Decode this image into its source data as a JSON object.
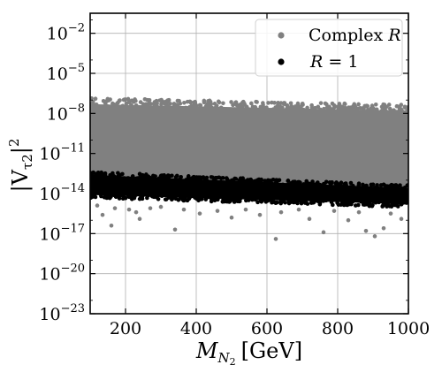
{
  "chart_data": {
    "type": "scatter",
    "xlabel_main": "M",
    "xlabel_sub": "N",
    "xlabel_subsub": "2",
    "xlabel_unit": "[GeV]",
    "ylabel_main": "|V",
    "ylabel_sub": "τ2",
    "ylabel_close": "|",
    "ylabel_sup": "2",
    "xlim": [
      100,
      1000
    ],
    "ylim_log10": [
      -23,
      -0.5
    ],
    "y_scale": "log",
    "grid": true,
    "legend_placement": "top-right",
    "x_ticks": [
      {
        "value": 200,
        "label": "200"
      },
      {
        "value": 400,
        "label": "400"
      },
      {
        "value": 600,
        "label": "600"
      },
      {
        "value": 800,
        "label": "800"
      },
      {
        "value": 1000,
        "label": "1000"
      }
    ],
    "y_ticks": [
      {
        "log10": -2,
        "base": "10",
        "exp": "−2"
      },
      {
        "log10": -5,
        "base": "10",
        "exp": "−5"
      },
      {
        "log10": -8,
        "base": "10",
        "exp": "−8"
      },
      {
        "log10": -11,
        "base": "10",
        "exp": "−11"
      },
      {
        "log10": -14,
        "base": "10",
        "exp": "−14"
      },
      {
        "log10": -17,
        "base": "10",
        "exp": "−17"
      },
      {
        "log10": -20,
        "base": "10",
        "exp": "−20"
      },
      {
        "log10": -23,
        "base": "10",
        "exp": "−23"
      }
    ],
    "series": [
      {
        "name": "Complex R",
        "legend_main": "Complex",
        "legend_var": "R",
        "color": "#808080",
        "log10_band": [
          {
            "x": 100,
            "upper": -7.3,
            "lower": -13.3
          },
          {
            "x": 1000,
            "upper": -7.8,
            "lower": -14.2
          }
        ],
        "outliers": [
          {
            "x": 120,
            "log10y": -14.9
          },
          {
            "x": 135,
            "log10y": -15.6
          },
          {
            "x": 160,
            "log10y": -16.4
          },
          {
            "x": 170,
            "log10y": -15.1
          },
          {
            "x": 210,
            "log10y": -15.2
          },
          {
            "x": 230,
            "log10y": -15.4
          },
          {
            "x": 240,
            "log10y": -15.9
          },
          {
            "x": 270,
            "log10y": -15.1
          },
          {
            "x": 300,
            "log10y": -15.0
          },
          {
            "x": 340,
            "log10y": -16.7
          },
          {
            "x": 365,
            "log10y": -15.2
          },
          {
            "x": 410,
            "log10y": -15.5
          },
          {
            "x": 460,
            "log10y": -15.3
          },
          {
            "x": 500,
            "log10y": -15.8
          },
          {
            "x": 540,
            "log10y": -15.2
          },
          {
            "x": 580,
            "log10y": -15.6
          },
          {
            "x": 625,
            "log10y": -17.4
          },
          {
            "x": 640,
            "log10y": -15.4
          },
          {
            "x": 690,
            "log10y": -15.2
          },
          {
            "x": 720,
            "log10y": -15.9
          },
          {
            "x": 760,
            "log10y": -16.9
          },
          {
            "x": 790,
            "log10y": -15.3
          },
          {
            "x": 830,
            "log10y": -16.0
          },
          {
            "x": 860,
            "log10y": -15.4
          },
          {
            "x": 880,
            "log10y": -16.8
          },
          {
            "x": 905,
            "log10y": -17.2
          },
          {
            "x": 930,
            "log10y": -16.6
          },
          {
            "x": 950,
            "log10y": -15.5
          },
          {
            "x": 980,
            "log10y": -15.9
          },
          {
            "x": 115,
            "log10y": -6.9
          },
          {
            "x": 150,
            "log10y": -7.0
          },
          {
            "x": 250,
            "log10y": -7.3
          },
          {
            "x": 400,
            "log10y": -7.4
          },
          {
            "x": 560,
            "log10y": -7.5
          },
          {
            "x": 650,
            "log10y": -7.3
          },
          {
            "x": 800,
            "log10y": -7.5
          },
          {
            "x": 900,
            "log10y": -7.6
          },
          {
            "x": 990,
            "log10y": -7.5
          }
        ]
      },
      {
        "name": "R = 1",
        "legend_var": "R",
        "legend_rest": "= 1",
        "color": "#000000",
        "log10_band": [
          {
            "x": 100,
            "upper": -12.6,
            "lower": -14.1
          },
          {
            "x": 1000,
            "upper": -13.6,
            "lower": -14.8
          }
        ]
      }
    ]
  }
}
